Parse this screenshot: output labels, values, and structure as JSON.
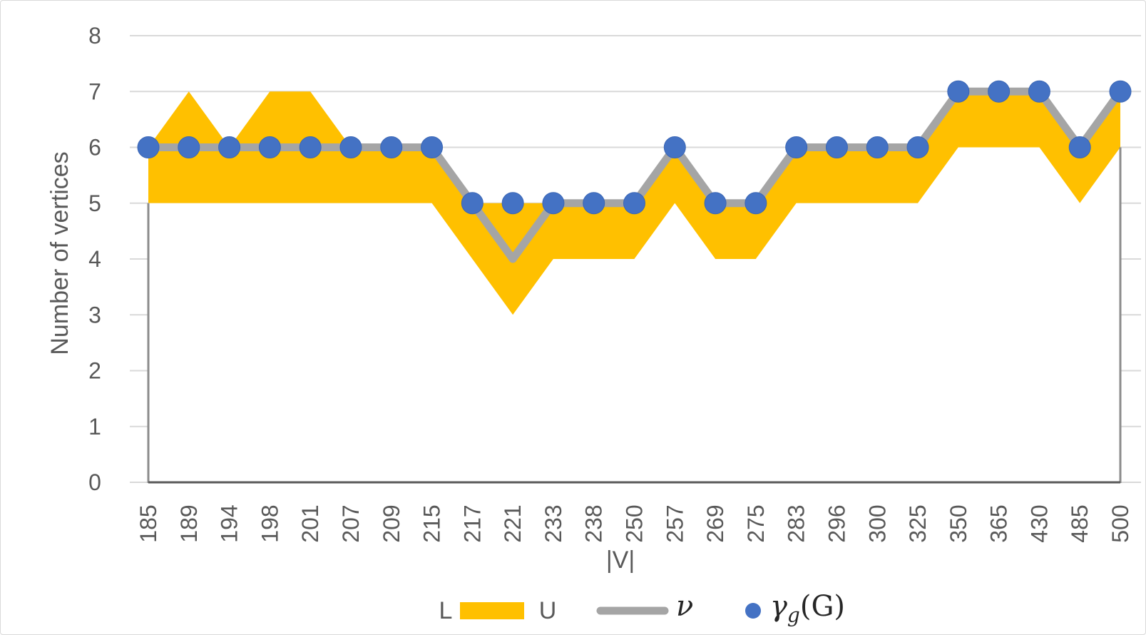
{
  "chart_data": {
    "type": "area",
    "title": "",
    "xlabel": "|V|",
    "ylabel": "Number of vertices",
    "ylim": [
      0,
      8
    ],
    "yticks": [
      "0",
      "1",
      "2",
      "3",
      "4",
      "5",
      "6",
      "7",
      "8"
    ],
    "grid": true,
    "legend_position": "bottom",
    "categories": [
      "185",
      "189",
      "194",
      "198",
      "201",
      "207",
      "209",
      "215",
      "217",
      "221",
      "233",
      "238",
      "250",
      "257",
      "269",
      "275",
      "283",
      "296",
      "300",
      "325",
      "350",
      "365",
      "430",
      "485",
      "500"
    ],
    "series": [
      {
        "name": "L",
        "kind": "area-lower",
        "values": [
          5,
          5,
          5,
          5,
          5,
          5,
          5,
          5,
          4,
          3,
          4,
          4,
          4,
          5,
          4,
          4,
          5,
          5,
          5,
          5,
          6,
          6,
          6,
          5,
          6
        ]
      },
      {
        "name": "U",
        "kind": "area-upper",
        "values": [
          6,
          7,
          6,
          7,
          7,
          6,
          6,
          6,
          5,
          5,
          5,
          5,
          5,
          6,
          5,
          5,
          6,
          6,
          6,
          6,
          7,
          7,
          7,
          6,
          7
        ]
      },
      {
        "name": "ν",
        "kind": "line",
        "values": [
          6,
          6,
          6,
          6,
          6,
          6,
          6,
          6,
          5,
          4,
          5,
          5,
          5,
          6,
          5,
          5,
          6,
          6,
          6,
          6,
          7,
          7,
          7,
          6,
          7
        ]
      },
      {
        "name": "γg(G)",
        "kind": "scatter",
        "values": [
          6,
          6,
          6,
          6,
          6,
          6,
          6,
          6,
          5,
          5,
          5,
          5,
          5,
          6,
          5,
          5,
          6,
          6,
          6,
          6,
          7,
          7,
          7,
          6,
          7
        ]
      }
    ],
    "legend": {
      "l_label": "L",
      "u_label": "U",
      "nu_label": "ν",
      "gamma_symbol": "γ",
      "gamma_sub": "g",
      "gamma_arg": "(G)"
    }
  },
  "colors": {
    "band": "#ffc000",
    "line": "#a5a5a5",
    "dot": "#4472c4",
    "grid": "#d9d9d9",
    "text": "#595959"
  }
}
